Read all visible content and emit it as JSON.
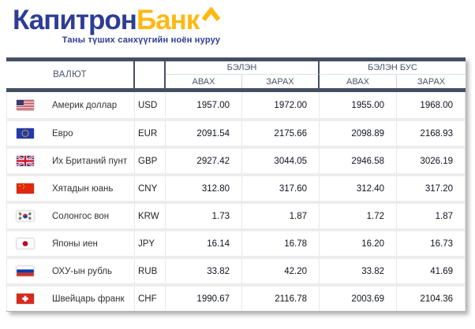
{
  "brand": {
    "name_part1": "Капитрон",
    "name_part2": "Банк",
    "caret_icon": "chevron-up",
    "tagline": "Таны түших санхүүгийн ноён нуруу",
    "colors": {
      "blue": "#2e3d94",
      "yellow": "#fdb813"
    }
  },
  "rates_table": {
    "bar_color": "#454f63",
    "header_text_color": "#4a5568",
    "columns": {
      "currency": "ВАЛЮТ",
      "cash_group": "БЭЛЭН",
      "noncash_group": "БЭЛЭН БУС",
      "buy": "АВАХ",
      "sell": "ЗАРАХ"
    },
    "rows": [
      {
        "flag": "us",
        "name": "Америк доллар",
        "code": "USD",
        "cash_buy": "1957.00",
        "cash_sell": "1972.00",
        "noncash_buy": "1955.00",
        "noncash_sell": "1968.00"
      },
      {
        "flag": "eu",
        "name": "Евро",
        "code": "EUR",
        "cash_buy": "2091.54",
        "cash_sell": "2175.66",
        "noncash_buy": "2098.89",
        "noncash_sell": "2168.93"
      },
      {
        "flag": "gb",
        "name": "Их Британий пунт",
        "code": "GBP",
        "cash_buy": "2927.42",
        "cash_sell": "3044.05",
        "noncash_buy": "2946.58",
        "noncash_sell": "3026.19"
      },
      {
        "flag": "cn",
        "name": "Хятадын юань",
        "code": "CNY",
        "cash_buy": "312.80",
        "cash_sell": "317.60",
        "noncash_buy": "312.40",
        "noncash_sell": "317.20"
      },
      {
        "flag": "kr",
        "name": "Солонгос вон",
        "code": "KRW",
        "cash_buy": "1.73",
        "cash_sell": "1.87",
        "noncash_buy": "1.72",
        "noncash_sell": "1.87"
      },
      {
        "flag": "jp",
        "name": "Японы иен",
        "code": "JPY",
        "cash_buy": "16.14",
        "cash_sell": "16.78",
        "noncash_buy": "16.20",
        "noncash_sell": "16.73"
      },
      {
        "flag": "ru",
        "name": "ОХУ-ын рубль",
        "code": "RUB",
        "cash_buy": "33.82",
        "cash_sell": "42.20",
        "noncash_buy": "33.82",
        "noncash_sell": "41.69"
      },
      {
        "flag": "ch",
        "name": "Швейцарь франк",
        "code": "CHF",
        "cash_buy": "1990.67",
        "cash_sell": "2116.78",
        "noncash_buy": "2003.69",
        "noncash_sell": "2104.36"
      }
    ]
  }
}
